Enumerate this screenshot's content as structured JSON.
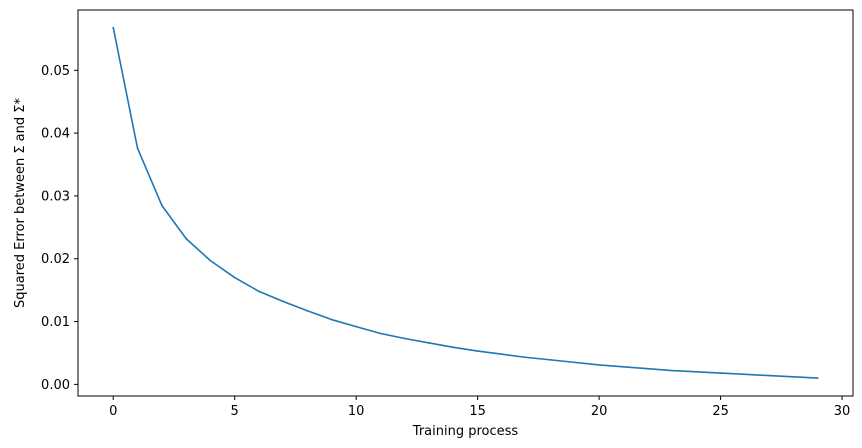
{
  "chart_data": {
    "type": "line",
    "title": "",
    "xlabel": "Training process",
    "ylabel": "Squared Error between Σ and Σ*",
    "xlim": [
      -1.45,
      30.45
    ],
    "ylim": [
      -0.00185,
      0.0596
    ],
    "x_ticks": [
      0,
      5,
      10,
      15,
      20,
      25,
      30
    ],
    "x_tick_labels": [
      "0",
      "5",
      "10",
      "15",
      "20",
      "25",
      "30"
    ],
    "y_ticks": [
      0.0,
      0.01,
      0.02,
      0.03,
      0.04,
      0.05
    ],
    "y_tick_labels": [
      "0.00",
      "0.01",
      "0.02",
      "0.03",
      "0.04",
      "0.05"
    ],
    "grid": false,
    "series": [
      {
        "color": "#1f77b4",
        "x": [
          0,
          1,
          2,
          3,
          4,
          5,
          6,
          7,
          8,
          9,
          10,
          11,
          12,
          13,
          14,
          15,
          16,
          17,
          18,
          19,
          20,
          21,
          22,
          23,
          24,
          25,
          26,
          27,
          28,
          29
        ],
        "y": [
          0.0568,
          0.0376,
          0.0285,
          0.0232,
          0.0197,
          0.017,
          0.0148,
          0.0132,
          0.0117,
          0.0103,
          0.0092,
          0.0081,
          0.0073,
          0.0066,
          0.0059,
          0.0053,
          0.0048,
          0.0043,
          0.0039,
          0.0035,
          0.0031,
          0.0028,
          0.0025,
          0.0022,
          0.002,
          0.0018,
          0.0016,
          0.0014,
          0.0012,
          0.001
        ]
      }
    ]
  }
}
